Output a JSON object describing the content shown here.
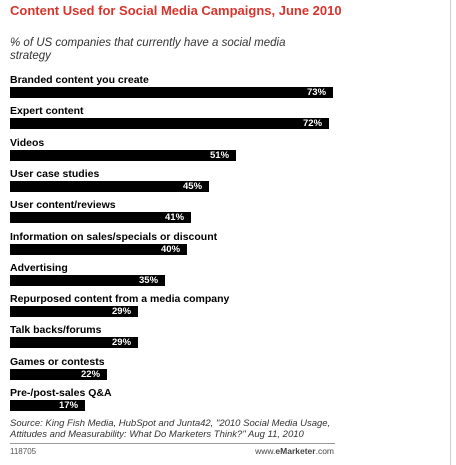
{
  "chart_data": {
    "type": "bar",
    "orientation": "horizontal",
    "title": "Content Used for Social Media Campaigns, June 2010",
    "subtitle": "% of US companies that currently have a social media strategy",
    "categories": [
      "Branded content you create",
      "Expert content",
      "Videos",
      "User case studies",
      "User content/reviews",
      "Information on sales/specials or discount",
      "Advertising",
      "Repurposed content from a media company",
      "Talk backs/forums",
      "Games or contests",
      "Pre-/post-sales Q&A"
    ],
    "values": [
      73,
      72,
      51,
      45,
      41,
      40,
      35,
      29,
      29,
      22,
      17
    ],
    "value_labels": [
      "73%",
      "72%",
      "51%",
      "45%",
      "41%",
      "40%",
      "35%",
      "29%",
      "29%",
      "22%",
      "17%"
    ],
    "xlim": [
      0,
      73
    ],
    "grid": false,
    "bar_color": "#000000",
    "value_label_color_inside": "#ffffff",
    "value_label_color_outside": "#000000"
  },
  "source": "Source: King Fish Media, HubSpot and Junta42, \"2010 Social Media Usage, Attitudes and Measurability: What Do Marketers Think?\" Aug 11, 2010",
  "chart_id": "118705",
  "logo": {
    "prefix": "www.",
    "brand": "eMarketer",
    "suffix": ".com"
  },
  "colors": {
    "title": "#d9342b",
    "bars": "#000000"
  }
}
